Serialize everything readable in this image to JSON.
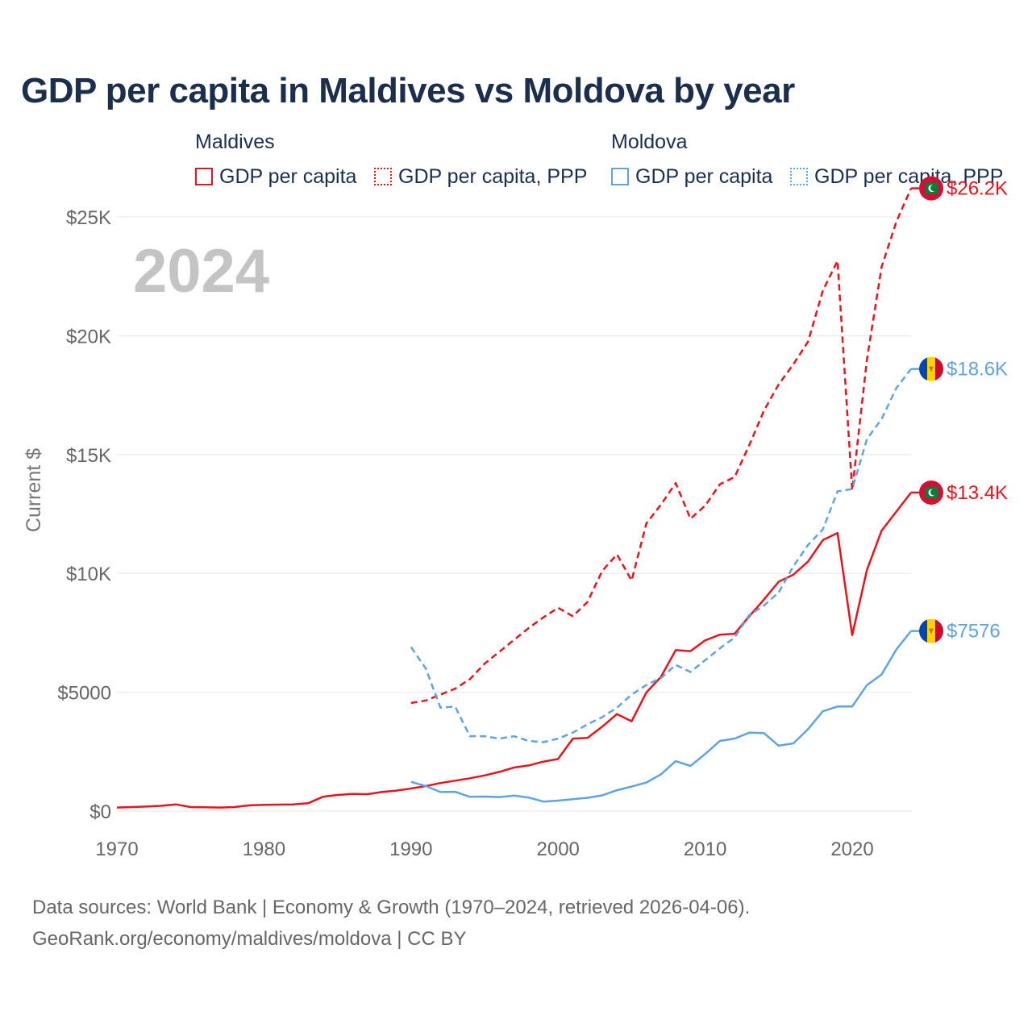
{
  "chart_data": {
    "type": "line",
    "title": "GDP per capita in Maldives vs Moldova by year",
    "ylabel": "Current $",
    "xlabel": "",
    "year_label": "2024",
    "xlim": [
      1970,
      2024
    ],
    "ylim": [
      0,
      27000
    ],
    "x_ticks": [
      1970,
      1980,
      1990,
      2000,
      2010,
      2020
    ],
    "y_ticks": [
      {
        "value": 0,
        "label": "$0"
      },
      {
        "value": 5000,
        "label": "$5000"
      },
      {
        "value": 10000,
        "label": "$10K"
      },
      {
        "value": 15000,
        "label": "$15K"
      },
      {
        "value": 20000,
        "label": "$20K"
      },
      {
        "value": 25000,
        "label": "$25K"
      }
    ],
    "grid": true,
    "legend_groups": [
      {
        "country": "Maldives",
        "items": [
          "GDP per capita",
          "GDP per capita, PPP"
        ]
      },
      {
        "country": "Moldova",
        "items": [
          "GDP per capita",
          "GDP per capita, PPP"
        ]
      }
    ],
    "series": [
      {
        "name": "Maldives GDP per capita",
        "color": "#e8141c",
        "dash": "solid",
        "end_label": "$13.4K",
        "flag": "maldives",
        "start_year": 1970,
        "values": [
          150,
          170,
          190,
          220,
          280,
          170,
          160,
          150,
          170,
          240,
          260,
          270,
          280,
          330,
          600,
          680,
          720,
          710,
          800,
          860,
          950,
          1050,
          1180,
          1280,
          1380,
          1500,
          1650,
          1830,
          1920,
          2080,
          2190,
          3050,
          3080,
          3550,
          4080,
          3780,
          4990,
          5650,
          6770,
          6730,
          7180,
          7420,
          7460,
          8200,
          8900,
          9650,
          9950,
          10500,
          11400,
          11700,
          7400,
          10150,
          11800,
          12600,
          13400
        ]
      },
      {
        "name": "Maldives GDP per capita, PPP",
        "color": "#e8141c",
        "dash": "dashed",
        "end_label": "$26.2K",
        "flag": "maldives",
        "start_year": 1990,
        "values": [
          4550,
          4650,
          4900,
          5150,
          5550,
          6200,
          6700,
          7200,
          7700,
          8150,
          8550,
          8200,
          8800,
          10100,
          10800,
          9700,
          12100,
          12900,
          13800,
          12300,
          12850,
          13750,
          14050,
          15400,
          16850,
          17950,
          18800,
          19750,
          21900,
          23150,
          13500,
          19000,
          22900,
          24800,
          26200
        ]
      },
      {
        "name": "Moldova GDP per capita",
        "color": "#5fa3e0",
        "dash": "solid",
        "end_label": "$7576",
        "flag": "moldova",
        "start_year": 1990,
        "values": [
          1230,
          1050,
          800,
          810,
          600,
          610,
          590,
          650,
          570,
          400,
          440,
          500,
          560,
          660,
          880,
          1030,
          1200,
          1550,
          2100,
          1900,
          2400,
          2950,
          3050,
          3300,
          3280,
          2750,
          2850,
          3450,
          4200,
          4400,
          4400,
          5300,
          5750,
          6800,
          7576
        ]
      },
      {
        "name": "Moldova GDP per capita, PPP",
        "color": "#5fa3e0",
        "dash": "dashed",
        "end_label": "$18.6K",
        "flag": "moldova",
        "start_year": 1990,
        "values": [
          6900,
          6000,
          4350,
          4400,
          3150,
          3150,
          3050,
          3150,
          2950,
          2900,
          3050,
          3300,
          3650,
          3950,
          4350,
          4900,
          5300,
          5600,
          6150,
          5850,
          6350,
          6850,
          7300,
          8250,
          8650,
          9200,
          10300,
          11200,
          11850,
          13450,
          13550,
          15650,
          16500,
          17800,
          18600
        ]
      }
    ]
  },
  "source": {
    "line1": "Data sources: World Bank | Economy & Growth (1970–2024, retrieved 2026-04-06).",
    "line2": "GeoRank.org/economy/maldives/moldova | CC BY"
  }
}
